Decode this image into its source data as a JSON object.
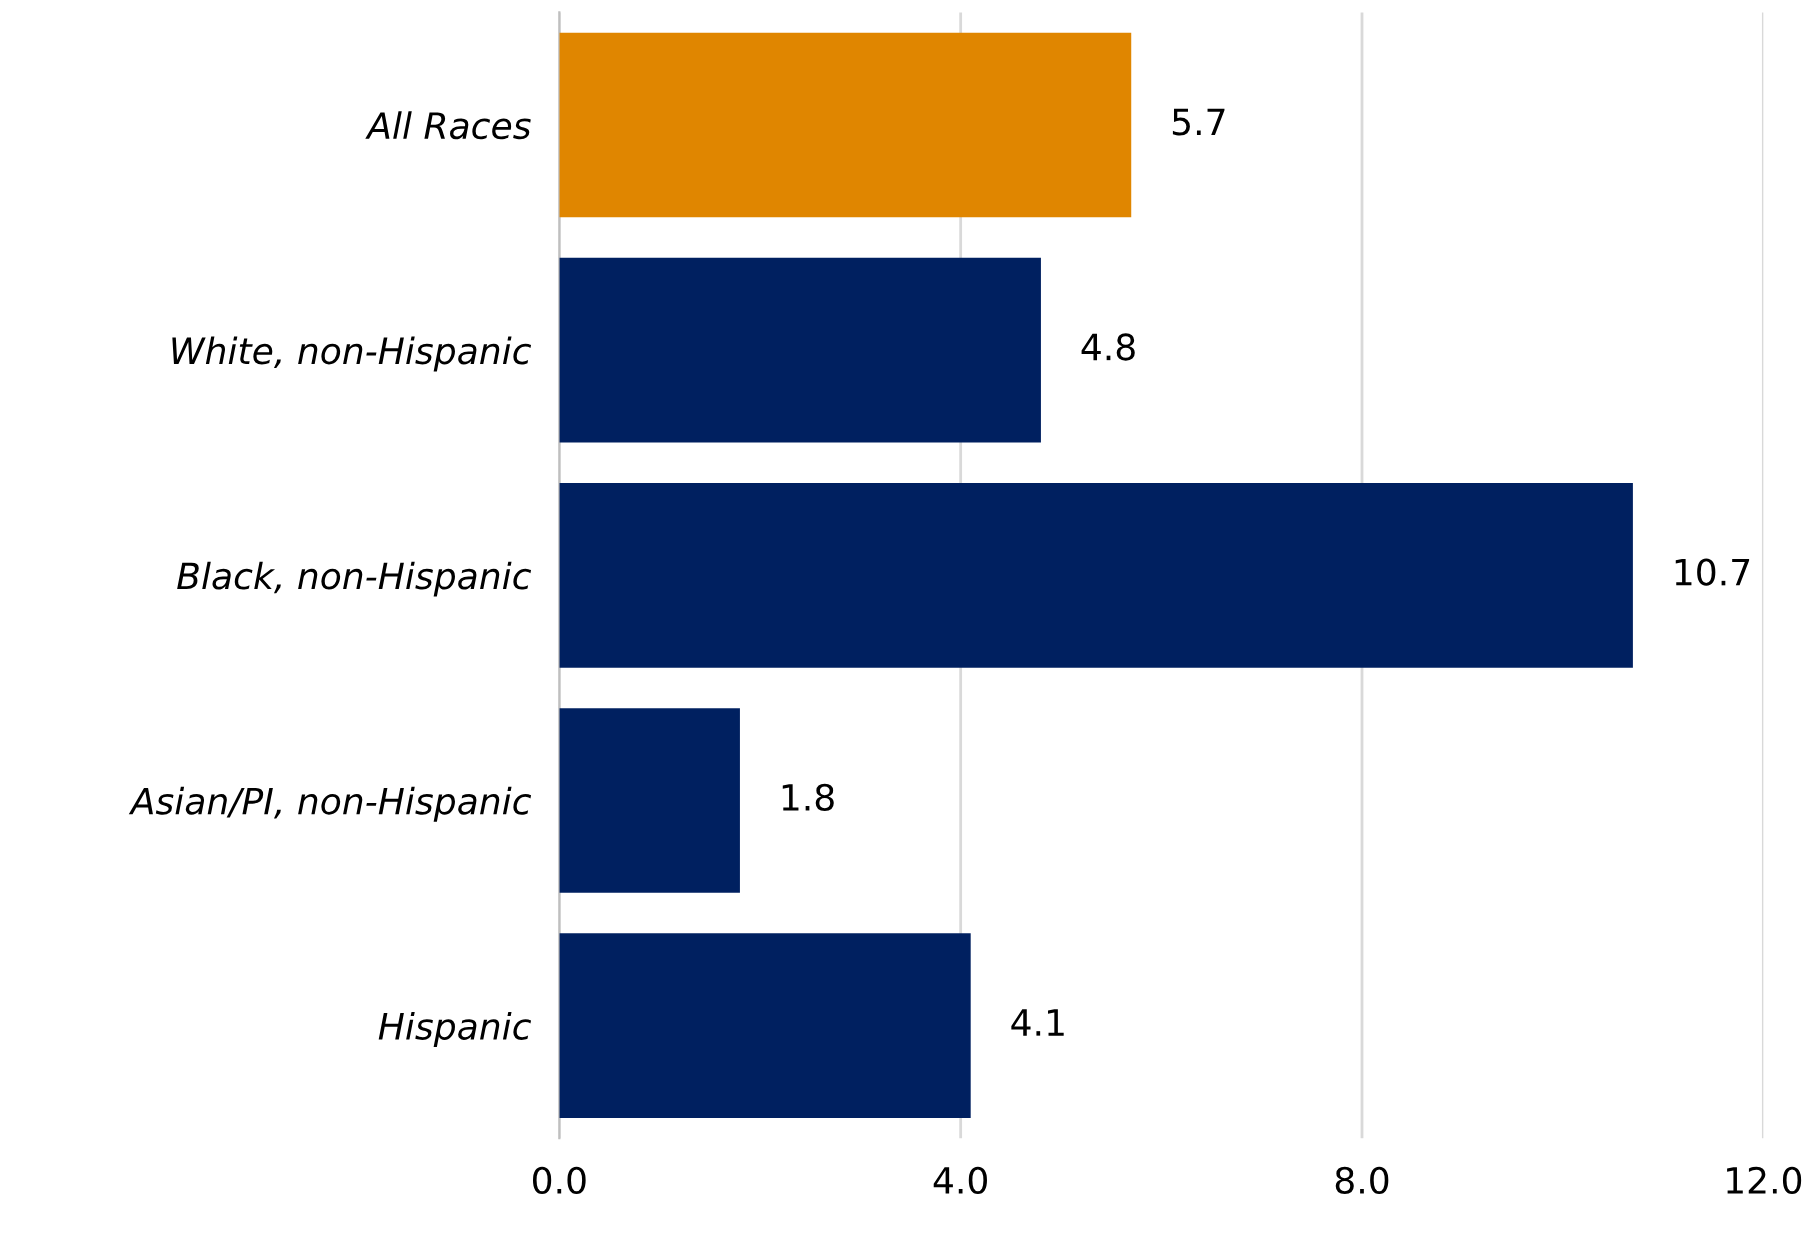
{
  "chart_data": {
    "type": "bar",
    "orientation": "horizontal",
    "categories": [
      "All Races",
      "White, non-Hispanic",
      "Black, non-Hispanic",
      "Asian/PI, non-Hispanic",
      "Hispanic"
    ],
    "values": [
      5.7,
      4.8,
      10.7,
      1.8,
      4.1
    ],
    "colors": [
      "#e08600",
      "#002060",
      "#002060",
      "#002060",
      "#002060"
    ],
    "xlim": [
      0,
      12
    ],
    "xticks": [
      {
        "value": 0,
        "label": "0.0"
      },
      {
        "value": 4,
        "label": "4.0"
      },
      {
        "value": 8,
        "label": "8.0"
      },
      {
        "value": 12,
        "label": "12.0"
      }
    ],
    "grid": "x",
    "data_labels": true
  }
}
